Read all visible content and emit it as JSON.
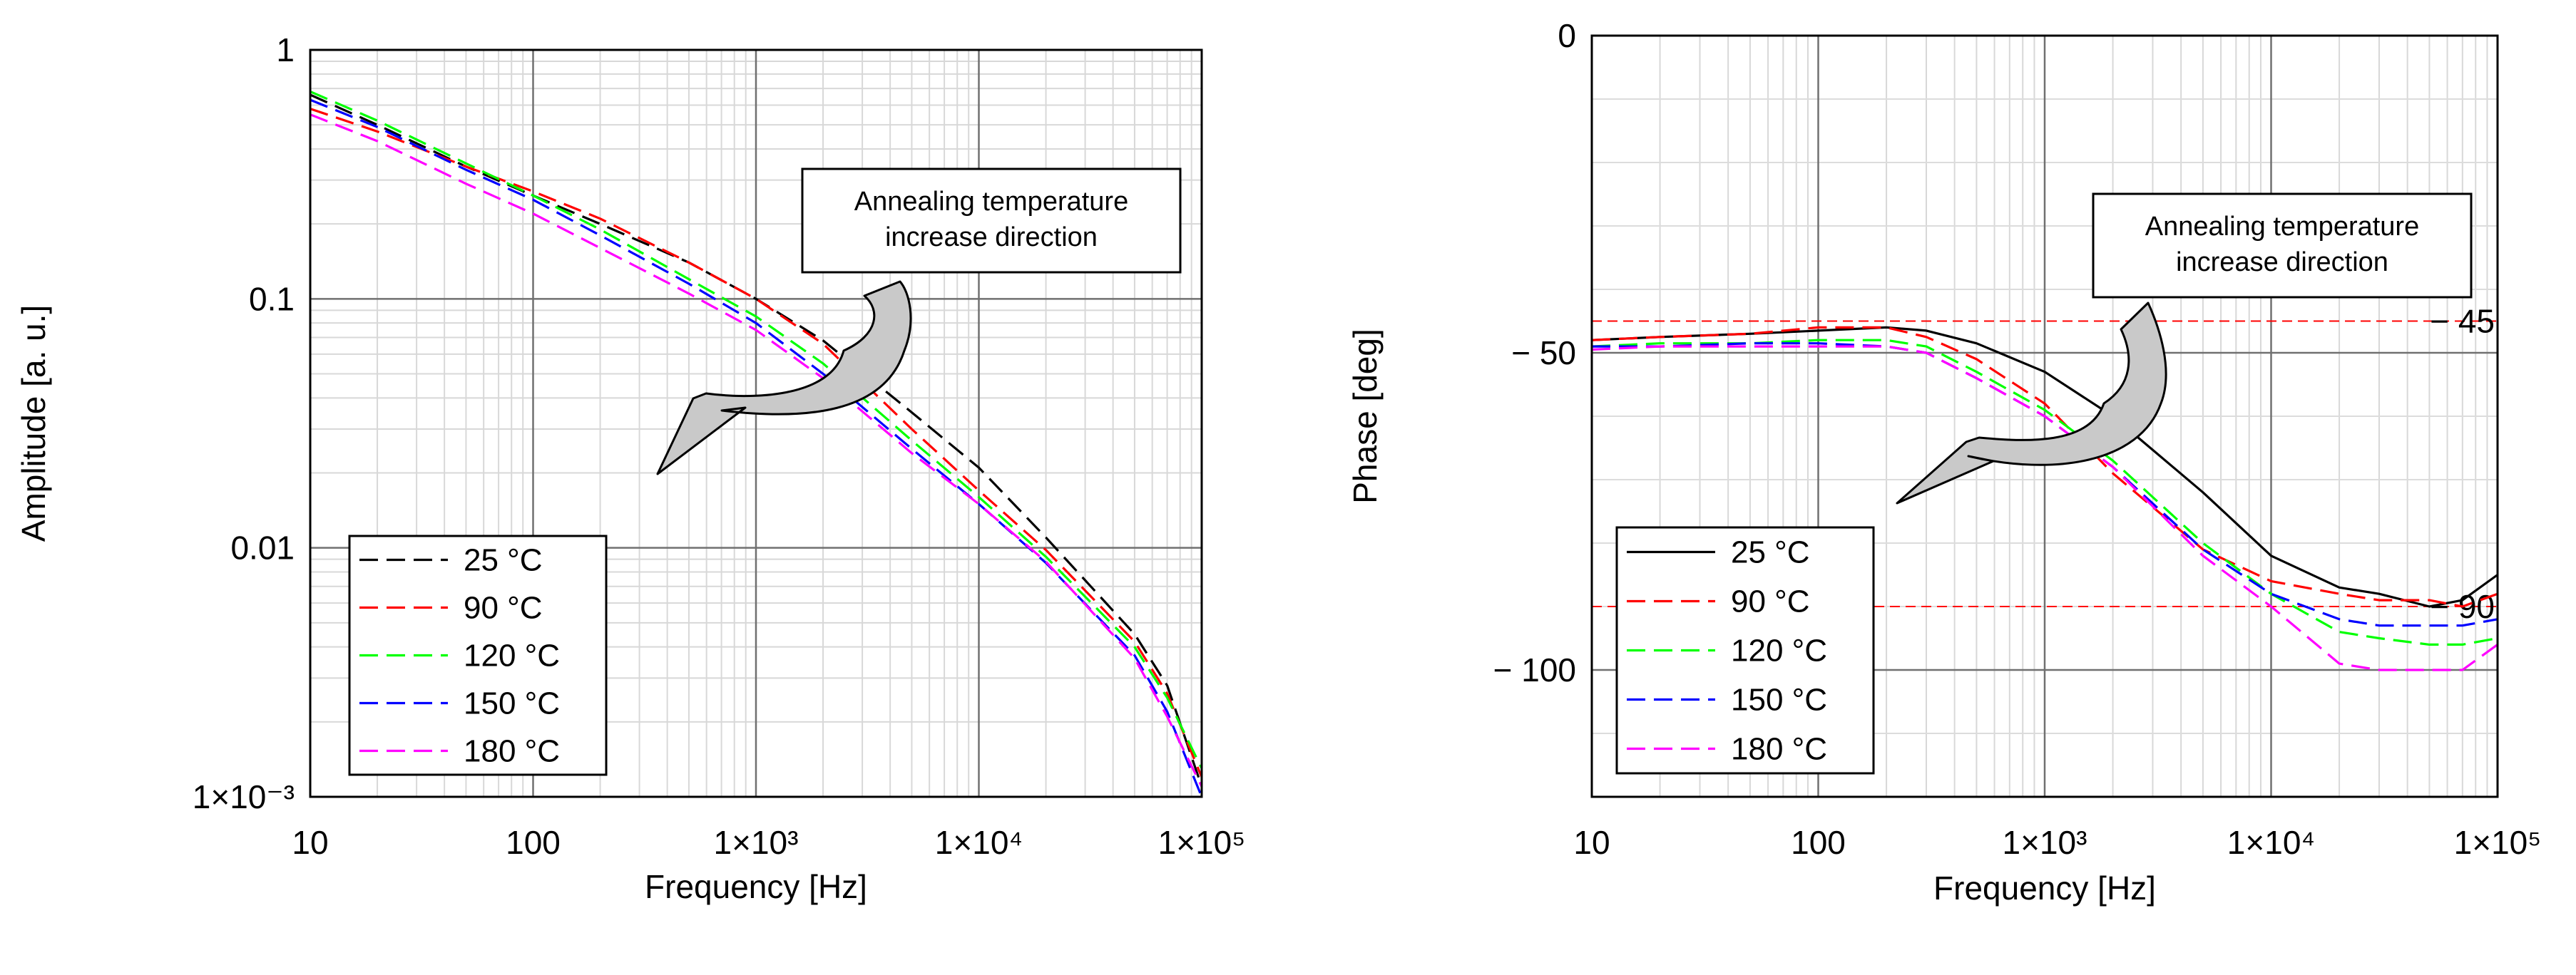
{
  "chart_data": [
    {
      "type": "line",
      "xscale": "log",
      "yscale": "log",
      "xlabel": "Frequency [Hz]",
      "ylabel": "Amplitude [a. u.]",
      "xlim": [
        10,
        100000
      ],
      "ylim": [
        0.001,
        1
      ],
      "xticks": [
        10,
        100,
        1000,
        10000,
        100000
      ],
      "xtick_labels": [
        "10",
        "100",
        "1×10³",
        "1×10⁴",
        "1×10⁵"
      ],
      "yticks": [
        1,
        0.1,
        0.01,
        0.001
      ],
      "ytick_labels": [
        "1",
        "0.1",
        "0.01",
        "1×10⁻³"
      ],
      "annotation": [
        "Annealing temperature",
        "increase direction"
      ],
      "legend_position": "bottom-left",
      "series": [
        {
          "name": "25 °C",
          "color": "#000000",
          "x": [
            10,
            20,
            50,
            100,
            200,
            500,
            1000,
            2000,
            5000,
            10000,
            20000,
            50000,
            70000,
            100000
          ],
          "y": [
            0.66,
            0.5,
            0.34,
            0.26,
            0.2,
            0.14,
            0.1,
            0.068,
            0.035,
            0.021,
            0.011,
            0.0045,
            0.0028,
            0.0011
          ]
        },
        {
          "name": "90 °C",
          "color": "#ff0000",
          "x": [
            10,
            20,
            50,
            100,
            200,
            500,
            1000,
            2000,
            5000,
            10000,
            20000,
            50000,
            70000,
            100000
          ],
          "y": [
            0.58,
            0.47,
            0.34,
            0.27,
            0.21,
            0.14,
            0.1,
            0.066,
            0.03,
            0.017,
            0.0098,
            0.0042,
            0.0026,
            0.0012
          ]
        },
        {
          "name": "120 °C",
          "color": "#00ff00",
          "x": [
            10,
            20,
            50,
            100,
            200,
            500,
            1000,
            2000,
            5000,
            10000,
            20000,
            50000,
            70000,
            100000
          ],
          "y": [
            0.68,
            0.52,
            0.35,
            0.26,
            0.19,
            0.12,
            0.085,
            0.055,
            0.027,
            0.016,
            0.0092,
            0.004,
            0.0025,
            0.0013
          ]
        },
        {
          "name": "150 °C",
          "color": "#0000ff",
          "x": [
            10,
            20,
            50,
            100,
            200,
            500,
            1000,
            2000,
            5000,
            10000,
            20000,
            50000,
            70000,
            100000
          ],
          "y": [
            0.63,
            0.49,
            0.33,
            0.25,
            0.18,
            0.115,
            0.08,
            0.05,
            0.025,
            0.015,
            0.0087,
            0.0037,
            0.0022,
            0.001
          ]
        },
        {
          "name": "180 °C",
          "color": "#ff00ff",
          "x": [
            10,
            20,
            50,
            100,
            200,
            500,
            1000,
            2000,
            5000,
            10000,
            20000,
            50000,
            70000,
            100000
          ],
          "y": [
            0.55,
            0.43,
            0.29,
            0.22,
            0.16,
            0.105,
            0.075,
            0.048,
            0.024,
            0.015,
            0.0088,
            0.0036,
            0.0021,
            0.0011
          ]
        }
      ]
    },
    {
      "type": "line",
      "xscale": "log",
      "yscale": "linear",
      "xlabel": "Frequency [Hz]",
      "ylabel": "Phase [deg]",
      "xlim": [
        10,
        100000
      ],
      "ylim": [
        -120,
        0
      ],
      "xticks": [
        10,
        100,
        1000,
        10000,
        100000
      ],
      "xtick_labels": [
        "10",
        "100",
        "1×10³",
        "1×10⁴",
        "1×10⁵"
      ],
      "yticks": [
        0,
        -50,
        -100
      ],
      "ytick_labels": [
        "0",
        "− 50",
        "− 100"
      ],
      "reference_lines": [
        {
          "value": -45,
          "label": "− 45",
          "color": "#ff0000"
        },
        {
          "value": -90,
          "label": "− 90",
          "color": "#ff0000"
        }
      ],
      "annotation": [
        "Annealing temperature",
        "increase direction"
      ],
      "legend_position": "bottom-left",
      "series": [
        {
          "name": "25 °C",
          "color": "#000000",
          "x": [
            10,
            20,
            50,
            100,
            200,
            300,
            500,
            1000,
            2000,
            5000,
            10000,
            20000,
            30000,
            50000,
            70000,
            100000
          ],
          "y": [
            -48,
            -47.5,
            -47,
            -46.5,
            -46,
            -46.5,
            -48.5,
            -53,
            -60,
            -72,
            -82,
            -87,
            -88,
            -90,
            -89,
            -85
          ]
        },
        {
          "name": "90 °C",
          "color": "#ff0000",
          "x": [
            10,
            20,
            50,
            100,
            200,
            300,
            500,
            1000,
            2000,
            5000,
            10000,
            20000,
            30000,
            50000,
            70000,
            100000
          ],
          "y": [
            -48,
            -47.5,
            -47,
            -46,
            -46,
            -47.5,
            -51,
            -58,
            -69,
            -81,
            -86,
            -88,
            -89,
            -89,
            -90,
            -88
          ]
        },
        {
          "name": "120 °C",
          "color": "#00ff00",
          "x": [
            10,
            20,
            50,
            100,
            200,
            300,
            500,
            1000,
            2000,
            5000,
            10000,
            20000,
            30000,
            50000,
            70000,
            100000
          ],
          "y": [
            -49,
            -48.5,
            -48.5,
            -48,
            -48,
            -49,
            -53,
            -59,
            -67,
            -80,
            -88,
            -94,
            -95,
            -96,
            -96,
            -95
          ]
        },
        {
          "name": "150 °C",
          "color": "#0000ff",
          "x": [
            10,
            20,
            50,
            100,
            200,
            300,
            500,
            1000,
            2000,
            5000,
            10000,
            20000,
            30000,
            50000,
            70000,
            100000
          ],
          "y": [
            -49,
            -49,
            -48.5,
            -48.5,
            -49,
            -50,
            -54,
            -60,
            -68,
            -81,
            -88,
            -92,
            -93,
            -93,
            -93,
            -92
          ]
        },
        {
          "name": "180 °C",
          "color": "#ff00ff",
          "x": [
            10,
            20,
            50,
            100,
            200,
            300,
            500,
            1000,
            2000,
            5000,
            10000,
            20000,
            30000,
            50000,
            70000,
            100000
          ],
          "y": [
            -49.5,
            -49,
            -49,
            -49,
            -49,
            -50,
            -54,
            -60,
            -68,
            -82,
            -90,
            -99,
            -100,
            -100,
            -100,
            -96
          ]
        }
      ]
    }
  ]
}
